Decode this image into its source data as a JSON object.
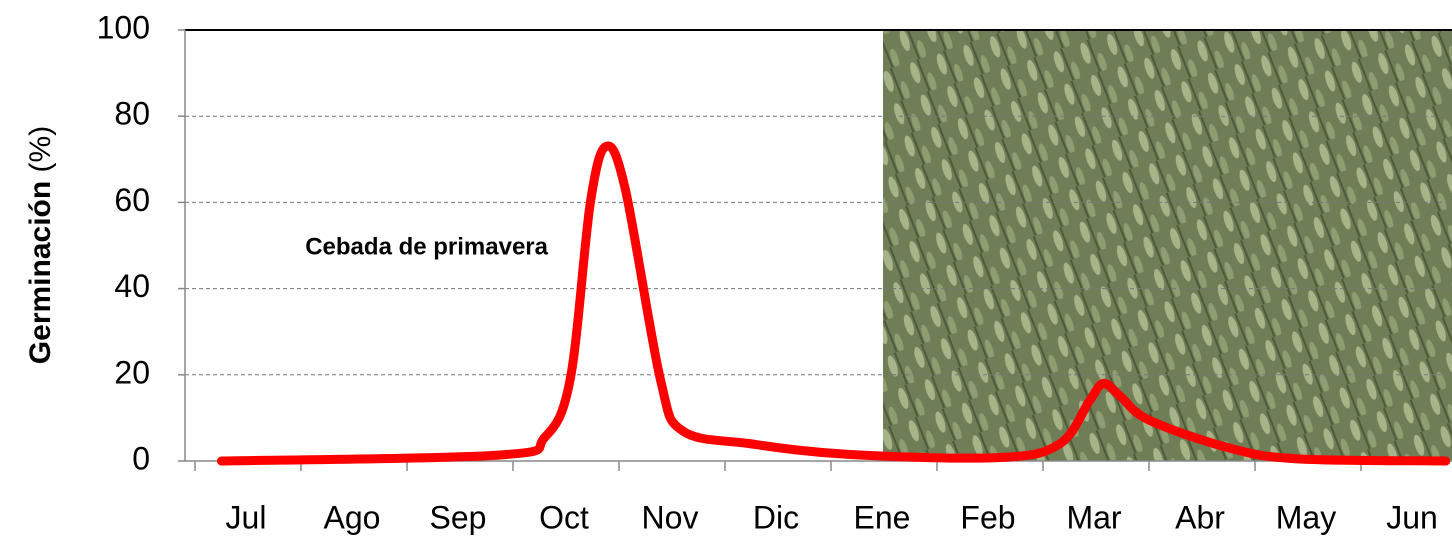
{
  "chart_data": {
    "type": "line",
    "y_label": "Germinación",
    "y_label_unit": "(%)",
    "annotation": "Cebada de primavera",
    "categories": [
      "Jul",
      "Ago",
      "Sep",
      "Oct",
      "Nov",
      "Dic",
      "Ene",
      "Feb",
      "Mar",
      "Abr",
      "May",
      "Jun"
    ],
    "xlim": [
      0,
      12
    ],
    "x": [
      0.25,
      2.88,
      3.3,
      3.54,
      3.73,
      3.88,
      4.06,
      4.39,
      4.6,
      5.24,
      6.18,
      7.6,
      8.16,
      8.44,
      8.57,
      8.73,
      9.0,
      9.76,
      10.4,
      11.8
    ],
    "values": [
      0,
      1.4,
      5.5,
      19,
      60,
      73,
      63,
      19,
      7,
      4,
      1.5,
      0.8,
      4,
      14,
      18,
      15,
      9.5,
      3,
      0.5,
      0
    ],
    "color": "#ff0000",
    "ylim": [
      0,
      100
    ],
    "yticks": [
      0,
      20,
      40,
      60,
      80,
      100
    ],
    "grid": true
  }
}
